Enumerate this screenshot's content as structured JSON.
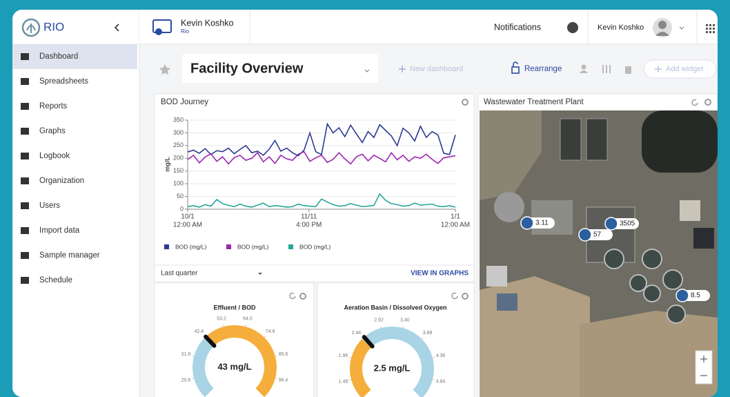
{
  "sidebar": {
    "brand": "RIO",
    "menu": [
      "Dashboard",
      "Spreadsheets",
      "Reports",
      "Graphs",
      "Logbook",
      "Organization",
      "Users",
      "Import data",
      "Sample manager",
      "Schedule"
    ],
    "active": 0
  },
  "topbar": {
    "user_name": "Kevin Koshko",
    "org": "Rio",
    "notifications": "Notifications",
    "account_name": "Kevin Koshko"
  },
  "toolbar": {
    "title": "Facility Overview",
    "new_dashboard": "New dashboard",
    "rearrange": "Rearrange",
    "add_widget": "Add widget"
  },
  "bod_widget": {
    "title": "BOD Journey",
    "range": "Last quarter",
    "link": "VIEW IN GRAPHS",
    "chart": {
      "type": "line",
      "y_label": "mg/L",
      "x": [
        0,
        2,
        4,
        6,
        8,
        10,
        12,
        14,
        16,
        18,
        20,
        22,
        24,
        26,
        28,
        30,
        32,
        34,
        36,
        38,
        40,
        42,
        44,
        46,
        48,
        50,
        52,
        54,
        56,
        58,
        60,
        62,
        64,
        66,
        68,
        70,
        72,
        74,
        76,
        78,
        80,
        82,
        84,
        86,
        88,
        90,
        92
      ],
      "xlim": [
        0,
        92
      ],
      "xticks": [
        {
          "value": 0,
          "label": [
            "10/1",
            "12:00 AM"
          ]
        },
        {
          "value": 41.67,
          "label": [
            "11/11",
            "4:00 PM"
          ]
        },
        {
          "value": 92,
          "label": [
            "1/1",
            "12:00 AM"
          ]
        }
      ],
      "ylim": [
        0,
        350
      ],
      "yticks": [
        0,
        50,
        100,
        150,
        200,
        250,
        300,
        350
      ],
      "grid": true,
      "series": [
        {
          "name": "BOD (mg/L)",
          "color": "#2b3990",
          "values": [
            225,
            232,
            220,
            238,
            215,
            230,
            226,
            240,
            218,
            235,
            250,
            222,
            228,
            212,
            236,
            270,
            228,
            240,
            222,
            210,
            232,
            300,
            226,
            215,
            335,
            300,
            320,
            285,
            330,
            296,
            262,
            305,
            282,
            332,
            310,
            288,
            250,
            318,
            300,
            268,
            326,
            282,
            305,
            292,
            220,
            215,
            292
          ]
        },
        {
          "name": "BOD (mg/L)",
          "color": "#9c27b0",
          "values": [
            195,
            212,
            182,
            205,
            218,
            188,
            206,
            178,
            203,
            212,
            192,
            200,
            222,
            186,
            206,
            180,
            212,
            198,
            192,
            216,
            226,
            188,
            202,
            212,
            184,
            196,
            222,
            198,
            178,
            206,
            216,
            190,
            212,
            200,
            186,
            222,
            194,
            212,
            188,
            206,
            200,
            216,
            196,
            180,
            202,
            206,
            210
          ]
        },
        {
          "name": "BOD (mg/L)",
          "color": "#26a69a",
          "values": [
            10,
            14,
            8,
            18,
            12,
            38,
            22,
            15,
            10,
            20,
            12,
            8,
            16,
            24,
            10,
            14,
            12,
            8,
            10,
            20,
            14,
            12,
            10,
            40,
            28,
            18,
            12,
            14,
            22,
            16,
            10,
            12,
            15,
            60,
            35,
            22,
            18,
            12,
            14,
            24,
            16,
            18,
            20,
            12,
            10,
            14,
            8
          ]
        }
      ]
    }
  },
  "gauges": [
    {
      "title": "Effluent / BOD",
      "value": 43,
      "value_label": "43 mg/L",
      "lim": [
        10,
        107.2
      ],
      "ticks": [
        {
          "value": 20.8,
          "label": "20.8"
        },
        {
          "value": 31.6,
          "label": "31.6"
        },
        {
          "value": 42.4,
          "label": "42.4"
        },
        {
          "value": 53.2,
          "label": "53.2"
        },
        {
          "value": 64,
          "label": "64.0"
        },
        {
          "value": 74.8,
          "label": "74.8"
        },
        {
          "value": 85.6,
          "label": "85.6"
        },
        {
          "value": 96.4,
          "label": "96.4"
        }
      ],
      "bands": [
        {
          "from": 10,
          "to": 42.4,
          "color": "#a8d4e6"
        },
        {
          "from": 42.4,
          "to": 107.2,
          "color": "#f5ad3b"
        }
      ]
    },
    {
      "title": "Aeration Basin / Dissolved Oxygen",
      "value": 2.5,
      "value_label": "2.5 mg/L",
      "lim": [
        1,
        5.32
      ],
      "ticks": [
        {
          "value": 1.48,
          "label": "1.48"
        },
        {
          "value": 1.96,
          "label": "1.96"
        },
        {
          "value": 2.44,
          "label": "2.44"
        },
        {
          "value": 2.92,
          "label": "2.92"
        },
        {
          "value": 3.4,
          "label": "3.40"
        },
        {
          "value": 3.88,
          "label": "3.88"
        },
        {
          "value": 4.36,
          "label": "4.36"
        },
        {
          "value": 4.84,
          "label": "4.84"
        }
      ],
      "bands": [
        {
          "from": 1,
          "to": 2.44,
          "color": "#f5ad3b"
        },
        {
          "from": 2.44,
          "to": 5.32,
          "color": "#a8d4e6"
        }
      ]
    }
  ],
  "map_widget": {
    "title": "Wastewater Treatment Plant",
    "markers": [
      3.11,
      3505,
      57,
      8.5
    ]
  }
}
